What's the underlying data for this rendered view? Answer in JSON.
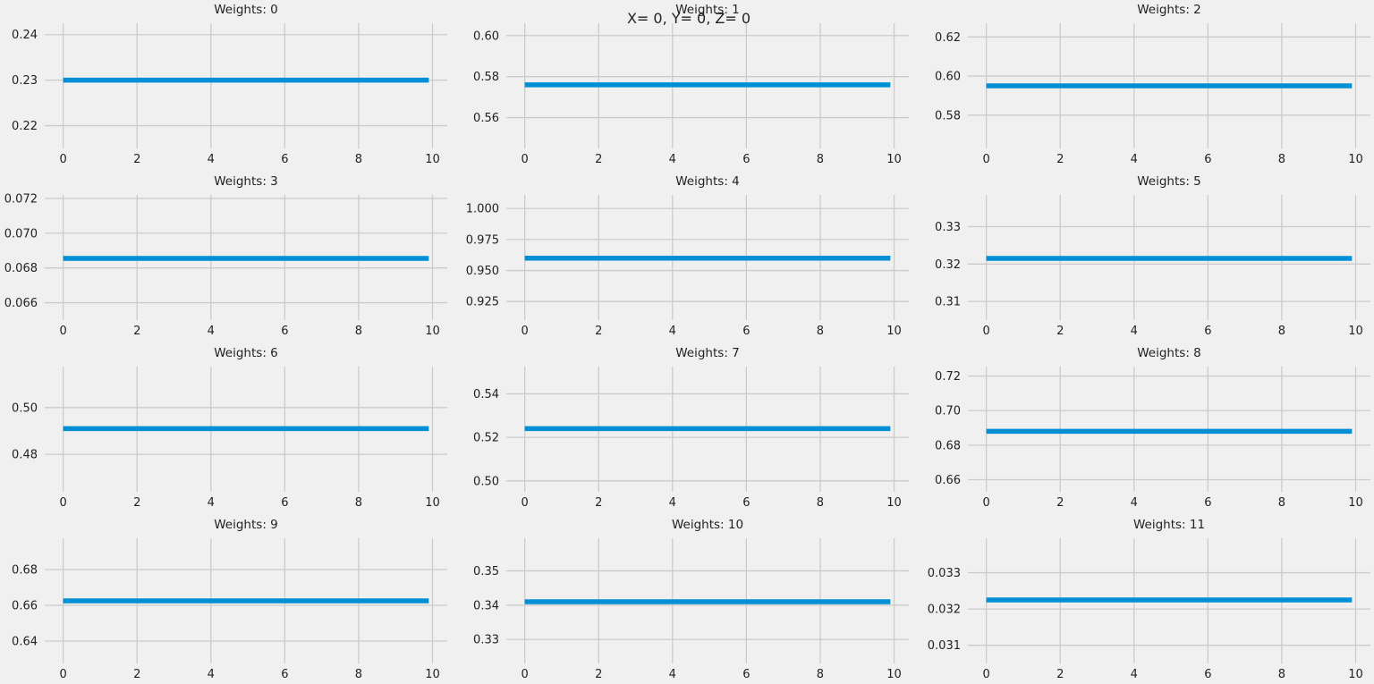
{
  "suptitle": "X= 0, Y= 0, Z= 0",
  "colors": {
    "background": "#f0f0f0",
    "grid": "#cbcbcb",
    "line": "#008fd5",
    "text": "#222222"
  },
  "chart_data": [
    {
      "type": "line",
      "title": "Weights: 0",
      "x": [
        0,
        9.9
      ],
      "y": [
        0.23,
        0.23
      ],
      "xlim": [
        -0.5,
        10.4
      ],
      "ylim": [
        0.215,
        0.2425
      ],
      "xticks": [
        "0",
        "2",
        "4",
        "6",
        "8",
        "10"
      ],
      "yticks": [
        "0.22",
        "0.23",
        "0.24"
      ],
      "grid": true
    },
    {
      "type": "line",
      "title": "Weights: 1",
      "x": [
        0,
        9.9
      ],
      "y": [
        0.576,
        0.576
      ],
      "xlim": [
        -0.5,
        10.4
      ],
      "ylim": [
        0.545,
        0.606
      ],
      "xticks": [
        "0",
        "2",
        "4",
        "6",
        "8",
        "10"
      ],
      "yticks": [
        "0.56",
        "0.58",
        "0.60"
      ],
      "grid": true
    },
    {
      "type": "line",
      "title": "Weights: 2",
      "x": [
        0,
        9.9
      ],
      "y": [
        0.595,
        0.595
      ],
      "xlim": [
        -0.5,
        10.4
      ],
      "ylim": [
        0.563,
        0.627
      ],
      "xticks": [
        "0",
        "2",
        "4",
        "6",
        "8",
        "10"
      ],
      "yticks": [
        "0.58",
        "0.60",
        "0.62"
      ],
      "grid": true
    },
    {
      "type": "line",
      "title": "Weights: 3",
      "x": [
        0,
        9.9
      ],
      "y": [
        0.06855,
        0.06855
      ],
      "xlim": [
        -0.5,
        10.4
      ],
      "ylim": [
        0.065,
        0.0722
      ],
      "xticks": [
        "0",
        "2",
        "4",
        "6",
        "8",
        "10"
      ],
      "yticks": [
        "0.066",
        "0.068",
        "0.070",
        "0.072"
      ],
      "grid": true
    },
    {
      "type": "line",
      "title": "Weights: 4",
      "x": [
        0,
        9.9
      ],
      "y": [
        0.96,
        0.96
      ],
      "xlim": [
        -0.5,
        10.4
      ],
      "ylim": [
        0.91,
        1.011
      ],
      "xticks": [
        "0",
        "2",
        "4",
        "6",
        "8",
        "10"
      ],
      "yticks": [
        "0.925",
        "0.950",
        "0.975",
        "1.000"
      ],
      "grid": true
    },
    {
      "type": "line",
      "title": "Weights: 5",
      "x": [
        0,
        9.9
      ],
      "y": [
        0.3215,
        0.3215
      ],
      "xlim": [
        -0.5,
        10.4
      ],
      "ylim": [
        0.305,
        0.3385
      ],
      "xticks": [
        "0",
        "2",
        "4",
        "6",
        "8",
        "10"
      ],
      "yticks": [
        "0.31",
        "0.32",
        "0.33"
      ],
      "grid": true
    },
    {
      "type": "line",
      "title": "Weights: 6",
      "x": [
        0,
        9.9
      ],
      "y": [
        0.491,
        0.491
      ],
      "xlim": [
        -0.5,
        10.4
      ],
      "ylim": [
        0.464,
        0.5175
      ],
      "xticks": [
        "0",
        "2",
        "4",
        "6",
        "8",
        "10"
      ],
      "yticks": [
        "0.48",
        "0.50"
      ],
      "grid": true
    },
    {
      "type": "line",
      "title": "Weights: 7",
      "x": [
        0,
        9.9
      ],
      "y": [
        0.524,
        0.524
      ],
      "xlim": [
        -0.5,
        10.4
      ],
      "ylim": [
        0.495,
        0.5525
      ],
      "xticks": [
        "0",
        "2",
        "4",
        "6",
        "8",
        "10"
      ],
      "yticks": [
        "0.50",
        "0.52",
        "0.54"
      ],
      "grid": true
    },
    {
      "type": "line",
      "title": "Weights: 8",
      "x": [
        0,
        9.9
      ],
      "y": [
        0.688,
        0.688
      ],
      "xlim": [
        -0.5,
        10.4
      ],
      "ylim": [
        0.653,
        0.7255
      ],
      "xticks": [
        "0",
        "2",
        "4",
        "6",
        "8",
        "10"
      ],
      "yticks": [
        "0.66",
        "0.68",
        "0.70",
        "0.72"
      ],
      "grid": true
    },
    {
      "type": "line",
      "title": "Weights: 9",
      "x": [
        0,
        9.9
      ],
      "y": [
        0.6625,
        0.6625
      ],
      "xlim": [
        -0.5,
        10.4
      ],
      "ylim": [
        0.6275,
        0.6975
      ],
      "xticks": [
        "0",
        "2",
        "4",
        "6",
        "8",
        "10"
      ],
      "yticks": [
        "0.64",
        "0.66",
        "0.68"
      ],
      "grid": true
    },
    {
      "type": "line",
      "title": "Weights: 10",
      "x": [
        0,
        9.9
      ],
      "y": [
        0.341,
        0.341
      ],
      "xlim": [
        -0.5,
        10.4
      ],
      "ylim": [
        0.323,
        0.3595
      ],
      "xticks": [
        "0",
        "2",
        "4",
        "6",
        "8",
        "10"
      ],
      "yticks": [
        "0.33",
        "0.34",
        "0.35"
      ],
      "grid": true
    },
    {
      "type": "line",
      "title": "Weights: 11",
      "x": [
        0,
        9.9
      ],
      "y": [
        0.03225,
        0.03225
      ],
      "xlim": [
        -0.5,
        10.4
      ],
      "ylim": [
        0.0305,
        0.03395
      ],
      "xticks": [
        "0",
        "2",
        "4",
        "6",
        "8",
        "10"
      ],
      "yticks": [
        "0.031",
        "0.032",
        "0.033"
      ],
      "grid": true
    }
  ]
}
